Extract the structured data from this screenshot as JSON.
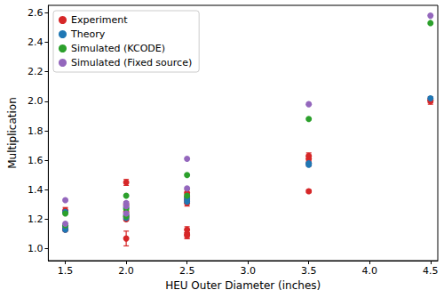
{
  "chart_data": {
    "type": "scatter",
    "x_label": "HEU Outer Diameter (inches)",
    "y_label": "Multiplication",
    "xlim": [
      1.36,
      4.56
    ],
    "xticks": [
      {
        "value": 1.5,
        "label": "1.5"
      },
      {
        "value": 2.0,
        "label": "2.0"
      },
      {
        "value": 2.5,
        "label": "2.5"
      },
      {
        "value": 3.0,
        "label": "3.0"
      },
      {
        "value": 3.5,
        "label": "3.5"
      },
      {
        "value": 4.0,
        "label": "4.0"
      },
      {
        "value": 4.5,
        "label": "4.5"
      }
    ],
    "ylim": [
      0.92,
      2.65
    ],
    "yticks": [
      {
        "value": 1.0,
        "label": "1.0"
      },
      1.2,
      1.4,
      1.6,
      1.8,
      {
        "value": 2.0,
        "label": "2.0"
      },
      2.2,
      2.4,
      2.6
    ],
    "grid": false,
    "legend": "upper left",
    "series": [
      {
        "name": "Experiment",
        "color": "#d62728",
        "marker": "circle",
        "x": [
          1.5,
          1.5,
          1.5,
          2,
          2,
          2,
          2,
          2,
          2,
          2.5,
          2.5,
          2.5,
          2.5,
          2.5,
          2.5,
          2.5,
          3.5,
          3.5,
          3.5,
          3.5,
          4.5,
          4.5
        ],
        "values": [
          1.26,
          1.14,
          1.13,
          1.45,
          1.3,
          1.25,
          1.22,
          1.2,
          1.07,
          1.38,
          1.35,
          1.33,
          1.31,
          1.13,
          1.1,
          1.09,
          1.63,
          1.61,
          1.58,
          1.39,
          2.01,
          2.0
        ],
        "errors": [
          0.02,
          0.01,
          0.01,
          0.02,
          0.02,
          0.02,
          0.01,
          0.01,
          0.05,
          0.02,
          0.02,
          0.02,
          0.02,
          0.02,
          0.03,
          0.02,
          0.02,
          0.02,
          0.02,
          0.01,
          0.02,
          0.02
        ]
      },
      {
        "name": "Theory",
        "color": "#1f77b4",
        "marker": "circle",
        "x": [
          1.5,
          1.5,
          1.5,
          2,
          2,
          2,
          2.5,
          2.5,
          3.5,
          3.5,
          4.5
        ],
        "values": [
          1.25,
          1.15,
          1.13,
          1.28,
          1.23,
          1.21,
          1.34,
          1.32,
          1.58,
          1.57,
          2.02
        ]
      },
      {
        "name": "Simulated (KCODE)",
        "color": "#2ca02c",
        "marker": "circle",
        "x": [
          1.5,
          1.5,
          2,
          2,
          2,
          2.5,
          2.5,
          3.5,
          4.5
        ],
        "values": [
          1.24,
          1.16,
          1.36,
          1.27,
          1.22,
          1.5,
          1.36,
          1.88,
          2.53
        ]
      },
      {
        "name": "Simulated (Fixed source)",
        "color": "#9467bd",
        "marker": "circle",
        "x": [
          1.5,
          1.5,
          2,
          2,
          2,
          2.5,
          2.5,
          3.5,
          4.5
        ],
        "values": [
          1.33,
          1.17,
          1.31,
          1.29,
          1.24,
          1.61,
          1.41,
          1.98,
          2.58
        ]
      }
    ]
  }
}
